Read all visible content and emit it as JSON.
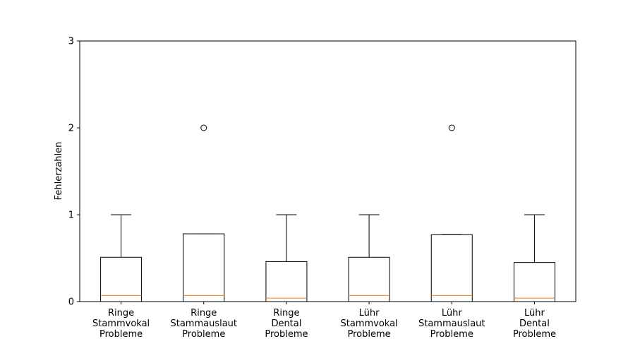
{
  "chart_data": {
    "type": "boxplot",
    "ylabel": "Fehlerzahlen",
    "ylim": [
      0,
      3
    ],
    "yticks": [
      "0",
      "1",
      "2",
      "3"
    ],
    "grid": false,
    "colors": {
      "box": "#000000",
      "median": "#ff7f0e",
      "outlier": "#000000"
    },
    "categories": [
      [
        "Ringe",
        "Stammvokal",
        "Probleme"
      ],
      [
        "Ringe",
        "Stammauslaut",
        "Probleme"
      ],
      [
        "Ringe",
        "Dental",
        "Probleme"
      ],
      [
        "Lühr",
        "Stammvokal",
        "Probleme"
      ],
      [
        "Lühr",
        "Stammauslaut",
        "Probleme"
      ],
      [
        "Lühr",
        "Dental",
        "Probleme"
      ]
    ],
    "boxes": [
      {
        "whislo": 0,
        "q1": 0,
        "med": 0.07,
        "q3": 0.51,
        "whishi": 1,
        "fliers": []
      },
      {
        "whislo": 0,
        "q1": 0,
        "med": 0.07,
        "q3": 0.78,
        "whishi": 0.78,
        "fliers": [
          2
        ]
      },
      {
        "whislo": 0,
        "q1": 0,
        "med": 0.04,
        "q3": 0.46,
        "whishi": 1,
        "fliers": []
      },
      {
        "whislo": 0,
        "q1": 0,
        "med": 0.07,
        "q3": 0.51,
        "whishi": 1,
        "fliers": []
      },
      {
        "whislo": 0,
        "q1": 0,
        "med": 0.07,
        "q3": 0.77,
        "whishi": 0.77,
        "fliers": [
          2
        ]
      },
      {
        "whislo": 0,
        "q1": 0,
        "med": 0.04,
        "q3": 0.45,
        "whishi": 1,
        "fliers": []
      }
    ]
  }
}
